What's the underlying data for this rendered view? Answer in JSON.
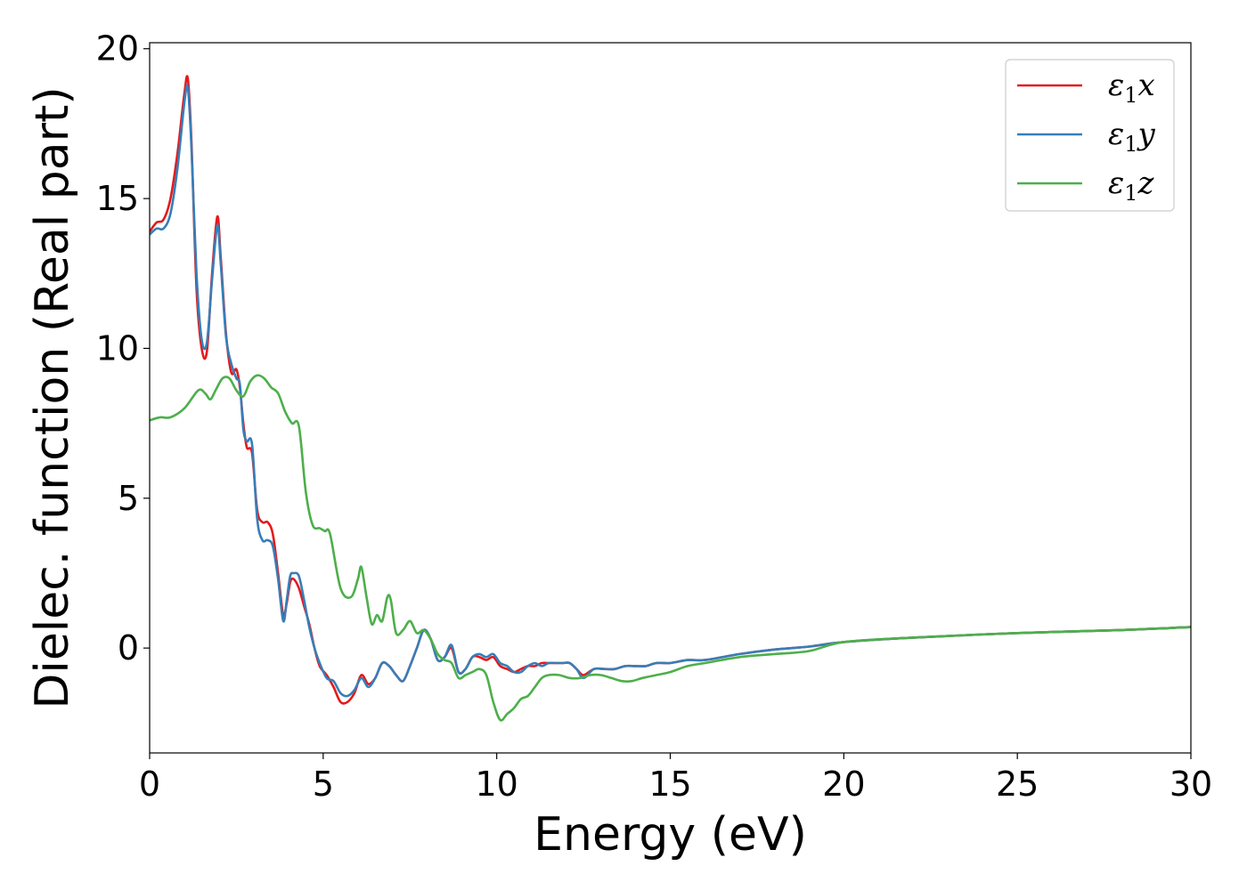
{
  "chart_data": {
    "type": "line",
    "xlabel": "Energy (eV)",
    "ylabel": "Dielec. function (Real part)",
    "xlim": [
      0,
      30
    ],
    "ylim": [
      -3.5,
      20.2
    ],
    "xticks": [
      0,
      5,
      10,
      15,
      20,
      25,
      30
    ],
    "yticks": [
      0,
      5,
      10,
      15,
      20
    ],
    "grid": false,
    "legend_position": "top-right",
    "series": [
      {
        "name": "ε1x",
        "legend_main": "ε",
        "legend_sub": "1",
        "legend_suffix": "x",
        "color": "#e41a1c",
        "x": [
          0,
          0.2,
          0.4,
          0.6,
          0.8,
          1.0,
          1.1,
          1.2,
          1.35,
          1.5,
          1.65,
          1.8,
          1.95,
          2.05,
          2.2,
          2.35,
          2.5,
          2.6,
          2.7,
          2.8,
          2.95,
          3.1,
          3.25,
          3.4,
          3.55,
          3.7,
          3.85,
          3.95,
          4.05,
          4.15,
          4.3,
          4.45,
          4.6,
          4.75,
          4.9,
          5.1,
          5.3,
          5.5,
          5.7,
          5.9,
          6.1,
          6.3,
          6.5,
          6.7,
          6.9,
          7.1,
          7.3,
          7.5,
          7.7,
          7.9,
          8.1,
          8.3,
          8.5,
          8.7,
          8.9,
          9.1,
          9.3,
          9.5,
          9.7,
          9.9,
          10.1,
          10.3,
          10.5,
          10.7,
          10.9,
          11.1,
          11.3,
          11.5,
          11.7,
          11.9,
          12.1,
          12.3,
          12.5,
          12.8,
          13.1,
          13.4,
          13.7,
          14.0,
          14.3,
          14.6,
          15.0,
          15.5,
          16.0,
          17.0,
          18.0,
          19.0,
          20.0,
          22.0,
          25.0,
          28.0,
          30.0
        ],
        "y": [
          13.9,
          14.2,
          14.3,
          15.0,
          16.5,
          18.5,
          19.0,
          17.0,
          12.0,
          10.0,
          9.9,
          12.5,
          14.4,
          13.0,
          10.5,
          9.2,
          9.3,
          8.7,
          7.5,
          6.7,
          6.5,
          4.6,
          4.2,
          4.2,
          3.8,
          2.5,
          1.1,
          1.5,
          2.2,
          2.3,
          2.0,
          1.4,
          0.8,
          0.0,
          -0.6,
          -0.9,
          -1.3,
          -1.8,
          -1.8,
          -1.5,
          -0.9,
          -1.2,
          -1.0,
          -0.5,
          -0.6,
          -0.9,
          -1.1,
          -0.6,
          0.0,
          0.6,
          0.3,
          -0.4,
          -0.3,
          0.0,
          -0.8,
          -0.7,
          -0.3,
          -0.3,
          -0.4,
          -0.3,
          -0.6,
          -0.7,
          -0.8,
          -0.7,
          -0.6,
          -0.6,
          -0.5,
          -0.5,
          -0.5,
          -0.5,
          -0.5,
          -0.7,
          -0.9,
          -0.7,
          -0.7,
          -0.7,
          -0.6,
          -0.6,
          -0.6,
          -0.5,
          -0.5,
          -0.4,
          -0.4,
          -0.2,
          -0.05,
          0.05,
          0.2,
          0.35,
          0.5,
          0.6,
          0.7
        ]
      },
      {
        "name": "ε1y",
        "legend_main": "ε",
        "legend_sub": "1",
        "legend_suffix": "y",
        "color": "#377eb8",
        "x": [
          0,
          0.2,
          0.4,
          0.6,
          0.8,
          1.0,
          1.1,
          1.2,
          1.35,
          1.5,
          1.65,
          1.8,
          1.95,
          2.05,
          2.2,
          2.35,
          2.5,
          2.6,
          2.7,
          2.8,
          2.95,
          3.1,
          3.25,
          3.4,
          3.55,
          3.7,
          3.85,
          3.95,
          4.05,
          4.15,
          4.3,
          4.45,
          4.6,
          4.75,
          4.9,
          5.1,
          5.3,
          5.5,
          5.7,
          5.9,
          6.1,
          6.3,
          6.5,
          6.7,
          6.9,
          7.1,
          7.3,
          7.5,
          7.7,
          7.9,
          8.1,
          8.3,
          8.5,
          8.7,
          8.9,
          9.1,
          9.3,
          9.5,
          9.7,
          9.9,
          10.1,
          10.3,
          10.5,
          10.7,
          10.9,
          11.1,
          11.3,
          11.5,
          11.7,
          11.9,
          12.1,
          12.3,
          12.5,
          12.8,
          13.1,
          13.4,
          13.7,
          14.0,
          14.3,
          14.6,
          15.0,
          15.5,
          16.0,
          17.0,
          18.0,
          19.0,
          20.0,
          22.0,
          25.0,
          28.0,
          30.0
        ],
        "y": [
          13.8,
          14.0,
          14.0,
          14.5,
          16.0,
          18.2,
          18.7,
          16.8,
          12.5,
          10.3,
          10.2,
          12.3,
          14.1,
          12.8,
          10.4,
          9.5,
          9.0,
          8.8,
          7.3,
          6.9,
          6.8,
          4.3,
          3.6,
          3.6,
          3.4,
          2.3,
          0.9,
          1.6,
          2.4,
          2.5,
          2.4,
          1.6,
          0.7,
          0.0,
          -0.5,
          -1.0,
          -1.1,
          -1.5,
          -1.6,
          -1.4,
          -1.0,
          -1.3,
          -1.0,
          -0.5,
          -0.6,
          -0.9,
          -1.1,
          -0.6,
          0.0,
          0.6,
          0.3,
          -0.4,
          -0.3,
          0.1,
          -0.8,
          -0.7,
          -0.3,
          -0.2,
          -0.3,
          -0.2,
          -0.5,
          -0.6,
          -0.8,
          -0.8,
          -0.6,
          -0.5,
          -0.6,
          -0.5,
          -0.5,
          -0.5,
          -0.5,
          -0.7,
          -1.0,
          -0.7,
          -0.7,
          -0.7,
          -0.6,
          -0.6,
          -0.6,
          -0.5,
          -0.5,
          -0.4,
          -0.4,
          -0.2,
          -0.05,
          0.05,
          0.2,
          0.35,
          0.5,
          0.6,
          0.7
        ]
      },
      {
        "name": "ε1z",
        "legend_main": "ε",
        "legend_sub": "1",
        "legend_suffix": "z",
        "color": "#4daf4a",
        "x": [
          0,
          0.3,
          0.6,
          1.0,
          1.4,
          1.6,
          1.75,
          1.9,
          2.1,
          2.3,
          2.5,
          2.7,
          2.9,
          3.1,
          3.3,
          3.5,
          3.7,
          3.9,
          4.1,
          4.3,
          4.5,
          4.7,
          4.9,
          5.05,
          5.2,
          5.5,
          5.8,
          6.0,
          6.1,
          6.25,
          6.4,
          6.55,
          6.7,
          6.85,
          6.95,
          7.1,
          7.3,
          7.5,
          7.7,
          7.9,
          8.1,
          8.3,
          8.5,
          8.7,
          8.9,
          9.1,
          9.3,
          9.5,
          9.7,
          9.9,
          10.1,
          10.3,
          10.5,
          10.7,
          10.9,
          11.1,
          11.3,
          11.5,
          11.8,
          12.1,
          12.4,
          12.7,
          13.0,
          13.3,
          13.6,
          13.9,
          14.2,
          14.6,
          15.0,
          15.5,
          16.0,
          17.0,
          18.0,
          19.0,
          20.0,
          22.0,
          25.0,
          28.0,
          30.0
        ],
        "y": [
          7.6,
          7.7,
          7.7,
          8.0,
          8.6,
          8.5,
          8.3,
          8.6,
          9.0,
          9.0,
          8.6,
          8.4,
          8.9,
          9.1,
          9.0,
          8.7,
          8.5,
          7.9,
          7.5,
          7.4,
          5.2,
          4.1,
          4.0,
          3.9,
          3.8,
          2.0,
          1.7,
          2.3,
          2.7,
          1.7,
          0.8,
          1.1,
          0.9,
          1.7,
          1.6,
          0.5,
          0.6,
          0.9,
          0.5,
          0.6,
          0.3,
          -0.2,
          -0.4,
          -0.5,
          -1.0,
          -0.9,
          -0.8,
          -0.7,
          -0.9,
          -1.8,
          -2.4,
          -2.2,
          -2.0,
          -1.7,
          -1.6,
          -1.3,
          -1.0,
          -0.9,
          -0.9,
          -1.0,
          -1.0,
          -0.9,
          -0.9,
          -1.0,
          -1.1,
          -1.1,
          -1.0,
          -0.9,
          -0.8,
          -0.6,
          -0.5,
          -0.3,
          -0.2,
          -0.1,
          0.2,
          0.35,
          0.5,
          0.6,
          0.7
        ]
      }
    ]
  }
}
